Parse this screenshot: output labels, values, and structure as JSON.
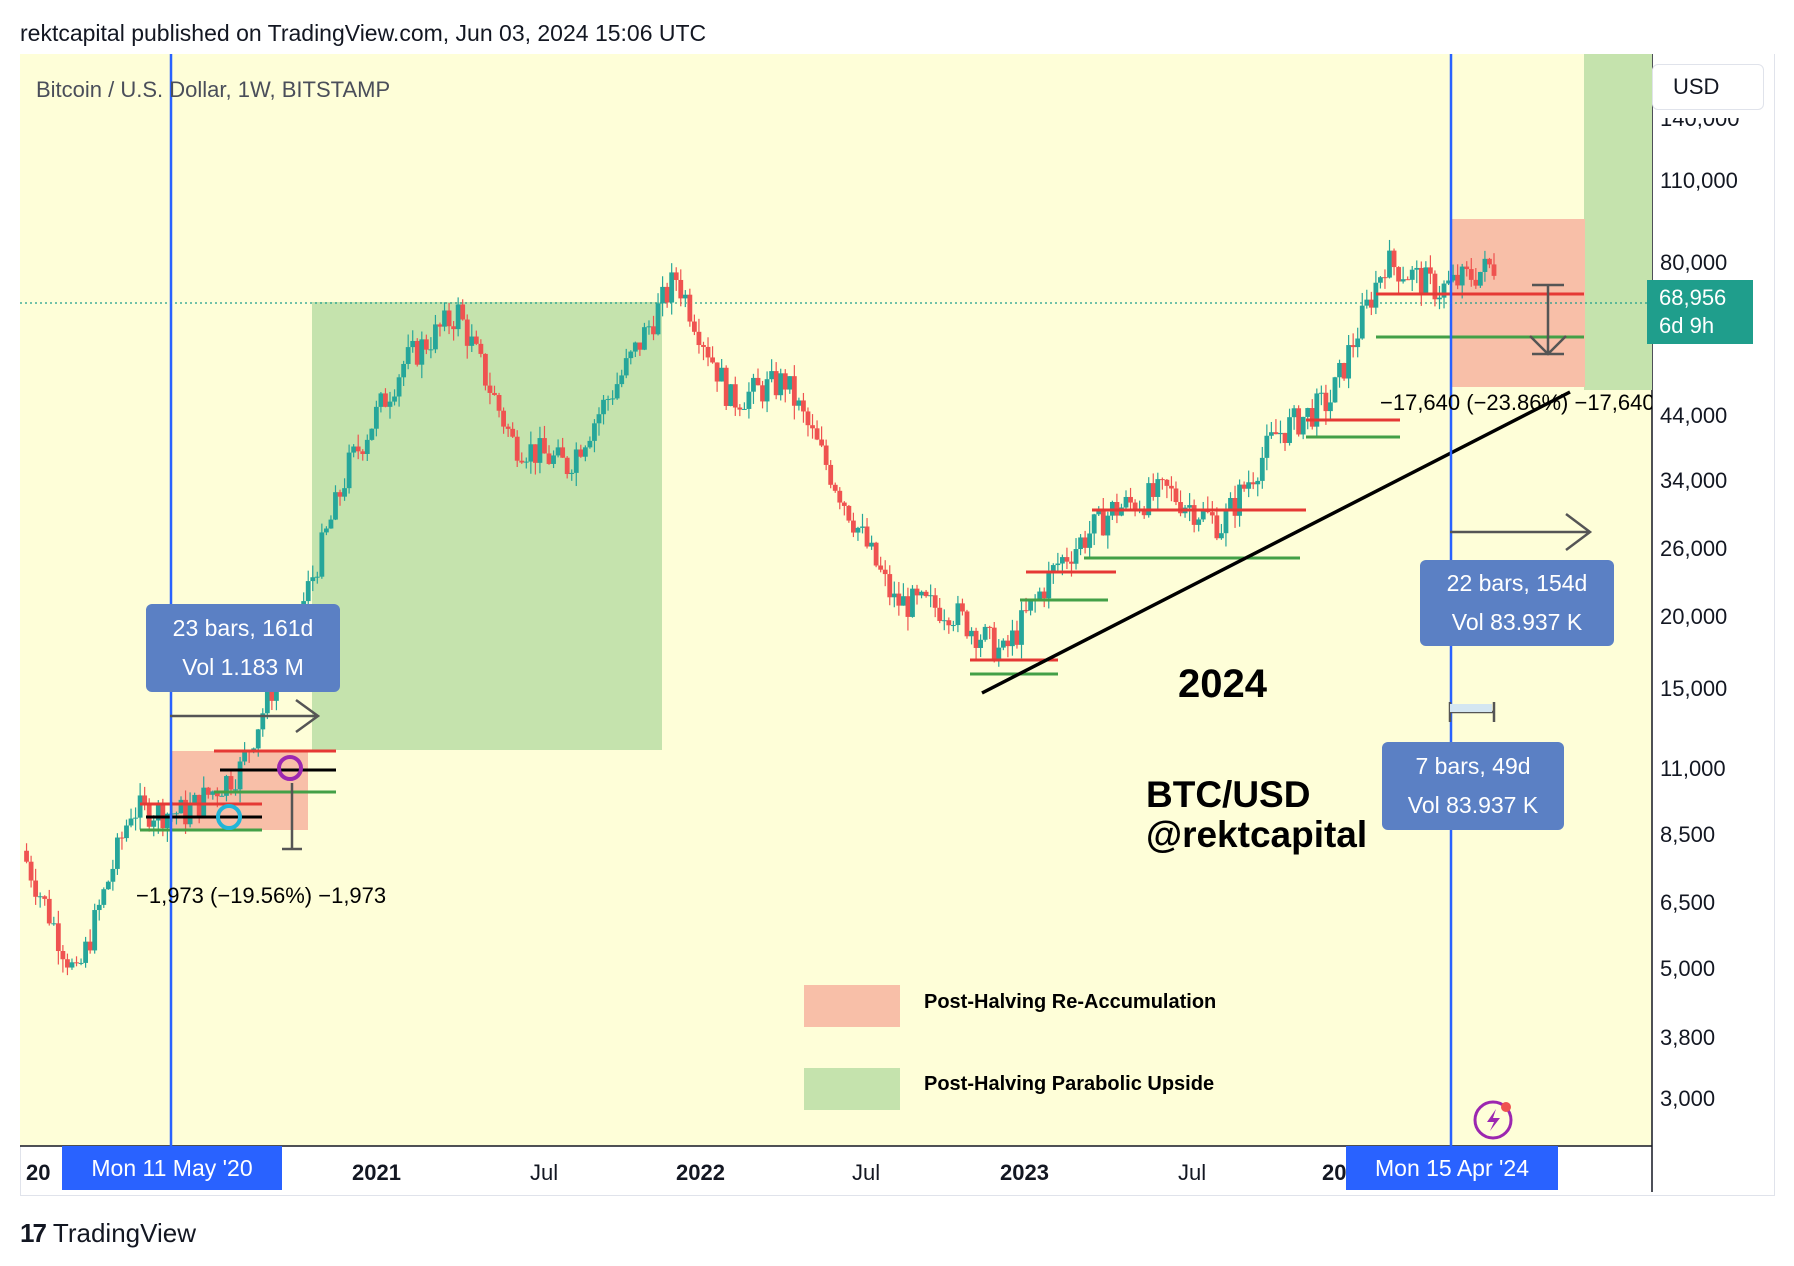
{
  "header": {
    "published": "rektcapital published on TradingView.com, Jun 03, 2024 15:06 UTC"
  },
  "chart": {
    "title": "Bitcoin / U.S. Dollar, 1W, BITSTAMP",
    "currency": "USD",
    "last_price": "68,956",
    "countdown": "6d 9h"
  },
  "annotations": {
    "stat_left": {
      "line1": "23 bars, 161d",
      "line2": "Vol 1.183 M"
    },
    "stat_right_top": {
      "line1": "22 bars, 154d",
      "line2": "Vol 83.937 K"
    },
    "stat_right_bottom": {
      "line1": "7 bars, 49d",
      "line2": "Vol 83.937 K"
    },
    "change_left": "−1,973 (−19.56%) −1,973",
    "change_right": "−17,640 (−23.86%) −17,640",
    "year_label": "2024",
    "handle_line1": "BTC/USD",
    "handle_line2": "@rektcapital"
  },
  "legend": [
    {
      "label": "Post-Halving Re-Accumulation",
      "color": "#f8bfa8"
    },
    {
      "label": "Post-Halving Parabolic Upside",
      "color": "#c5e3ad"
    }
  ],
  "time_tags": {
    "left": "Mon 11 May '20",
    "right": "Mon 15 Apr '24"
  },
  "x_axis": {
    "labels": [
      "20",
      "2021",
      "Jul",
      "2022",
      "Jul",
      "2023",
      "Jul",
      "20"
    ],
    "bold": [
      true,
      true,
      false,
      true,
      false,
      true,
      false,
      true
    ]
  },
  "y_axis": {
    "labels": [
      "140,000",
      "110,000",
      "80,000",
      "44,000",
      "34,000",
      "26,000",
      "20,000",
      "15,000",
      "11,000",
      "8,500",
      "6,500",
      "5,000",
      "3,800",
      "3,000"
    ]
  },
  "colors": {
    "background": "#fefed8",
    "up": "#26a69a",
    "down": "#ef5350",
    "halving_line": "#2962ff",
    "reaccum": "#f8bfa8",
    "parabolic": "#c5e3ad"
  },
  "chart_data": {
    "type": "candlestick",
    "title": "Bitcoin / U.S. Dollar, 1W, BITSTAMP",
    "scale": "log",
    "ylim": [
      2700,
      150000
    ],
    "last_price": 68956,
    "x": [
      "2020-01",
      "2020-03",
      "2020-05",
      "2020-07",
      "2020-09",
      "2020-11",
      "2021-01",
      "2021-02",
      "2021-04",
      "2021-05",
      "2021-07",
      "2021-09",
      "2021-11",
      "2022-01",
      "2022-03",
      "2022-05",
      "2022-06",
      "2022-09",
      "2022-11",
      "2023-01",
      "2023-03",
      "2023-06",
      "2023-09",
      "2023-11",
      "2024-01",
      "2024-03",
      "2024-04",
      "2024-06"
    ],
    "close": [
      8000,
      5000,
      9300,
      9200,
      10800,
      18000,
      33000,
      48000,
      58000,
      36000,
      33000,
      46000,
      66000,
      42000,
      45000,
      30000,
      20000,
      19500,
      16500,
      23000,
      28000,
      30000,
      26500,
      37000,
      42000,
      70000,
      63000,
      68956
    ],
    "series": [
      {
        "name": "BTC/USD",
        "values": [
          8000,
          5000,
          9300,
          9200,
          10800,
          18000,
          33000,
          48000,
          58000,
          36000,
          33000,
          46000,
          66000,
          42000,
          45000,
          30000,
          20000,
          19500,
          16500,
          23000,
          28000,
          30000,
          26500,
          37000,
          42000,
          70000,
          63000,
          68956
        ]
      }
    ],
    "annotations": [
      {
        "type": "vline",
        "date": "2020-05-11",
        "label": "Mon 11 May '20"
      },
      {
        "type": "vline",
        "date": "2024-04-15",
        "label": "Mon 15 Apr '24"
      },
      {
        "type": "range",
        "label": "Post-Halving Re-Accumulation",
        "bars": 23,
        "days": 161
      },
      {
        "type": "range",
        "label": "Post-Halving Parabolic Upside"
      },
      {
        "type": "measure",
        "text": "−1,973 (−19.56%) −1,973"
      },
      {
        "type": "measure",
        "text": "−17,640 (−23.86%) −17,640"
      }
    ]
  }
}
